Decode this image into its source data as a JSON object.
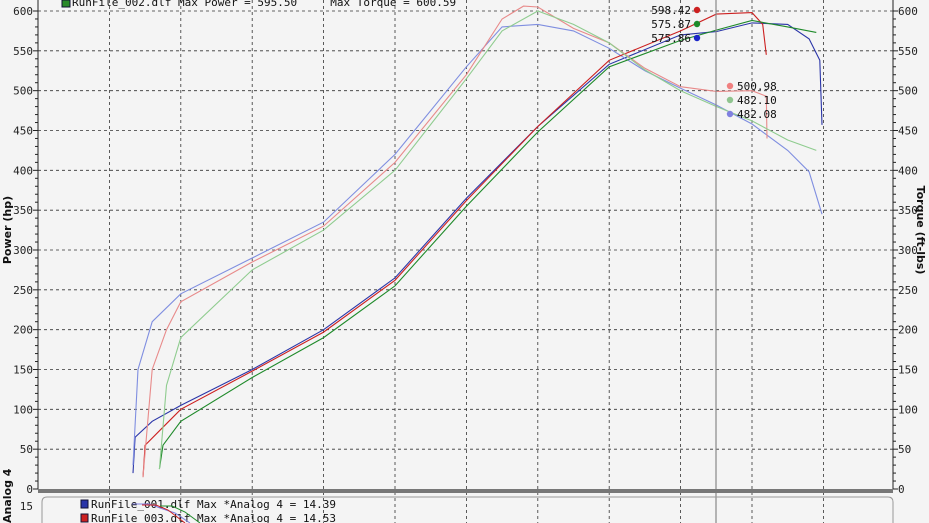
{
  "chart_data": {
    "type": "line",
    "title": "",
    "legend_top": "RunFile_002.dlf Max Power = 595.50     Max Torque = 600.59",
    "ylabel_left": "Power (hp)",
    "ylabel_right": "Torque (ft-lbs)",
    "ylim": [
      0,
      600
    ],
    "yticks": [
      0,
      50,
      100,
      150,
      200,
      250,
      300,
      350,
      400,
      450,
      500,
      550,
      600
    ],
    "grid": true,
    "x_tick_labels_visible": false,
    "cursor_x": 9.5,
    "series": [
      {
        "run": "RunFile_001",
        "kind": "power",
        "color": "#2a35a8",
        "points": [
          [
            1.33,
            20
          ],
          [
            1.36,
            65
          ],
          [
            1.6,
            85
          ],
          [
            2,
            105
          ],
          [
            3,
            150
          ],
          [
            4,
            200
          ],
          [
            5,
            265
          ],
          [
            6,
            365
          ],
          [
            7,
            455
          ],
          [
            8,
            535
          ],
          [
            9,
            570
          ],
          [
            9.5,
            576
          ],
          [
            10,
            585
          ],
          [
            10.5,
            585
          ],
          [
            10.8,
            565
          ],
          [
            10.95,
            540
          ],
          [
            10.98,
            457
          ]
        ]
      },
      {
        "run": "RunFile_001",
        "kind": "torque",
        "color": "#7f8ee0",
        "points": [
          [
            1.33,
            30
          ],
          [
            1.4,
            150
          ],
          [
            1.6,
            210
          ],
          [
            2,
            245
          ],
          [
            3,
            290
          ],
          [
            4,
            335
          ],
          [
            5,
            420
          ],
          [
            6,
            530
          ],
          [
            6.5,
            580
          ],
          [
            7,
            585
          ],
          [
            7.5,
            575
          ],
          [
            8,
            555
          ],
          [
            8.5,
            525
          ],
          [
            9,
            505
          ],
          [
            9.5,
            482
          ],
          [
            10,
            460
          ],
          [
            10.5,
            425
          ],
          [
            10.8,
            400
          ],
          [
            10.98,
            345
          ]
        ]
      },
      {
        "run": "RunFile_003",
        "kind": "power",
        "color": "#cc2020",
        "points": [
          [
            1.47,
            15
          ],
          [
            1.5,
            55
          ],
          [
            1.8,
            82
          ],
          [
            2,
            100
          ],
          [
            3,
            148
          ],
          [
            4,
            197
          ],
          [
            5,
            262
          ],
          [
            6,
            362
          ],
          [
            7,
            455
          ],
          [
            8,
            540
          ],
          [
            9,
            575
          ],
          [
            9.5,
            598
          ],
          [
            10,
            598
          ],
          [
            10.15,
            585
          ],
          [
            10.2,
            545
          ]
        ]
      },
      {
        "run": "RunFile_003",
        "kind": "torque",
        "color": "#e88a8a",
        "points": [
          [
            1.47,
            15
          ],
          [
            1.6,
            150
          ],
          [
            1.8,
            200
          ],
          [
            2,
            235
          ],
          [
            3,
            285
          ],
          [
            4,
            330
          ],
          [
            5,
            410
          ],
          [
            6,
            520
          ],
          [
            6.5,
            590
          ],
          [
            6.8,
            608
          ],
          [
            7,
            605
          ],
          [
            7.5,
            580
          ],
          [
            8,
            560
          ],
          [
            8.5,
            530
          ],
          [
            9,
            505
          ],
          [
            9.5,
            501
          ],
          [
            10,
            500
          ],
          [
            10.2,
            495
          ],
          [
            10.21,
            440
          ]
        ]
      },
      {
        "run": "RunFile_002",
        "kind": "power",
        "color": "#1f8a2a",
        "points": [
          [
            1.7,
            25
          ],
          [
            1.75,
            55
          ],
          [
            2,
            85
          ],
          [
            3,
            140
          ],
          [
            4,
            190
          ],
          [
            5,
            255
          ],
          [
            6,
            355
          ],
          [
            7,
            450
          ],
          [
            8,
            530
          ],
          [
            9,
            565
          ],
          [
            9.5,
            576
          ],
          [
            10,
            590
          ],
          [
            10.5,
            580
          ],
          [
            10.9,
            575
          ]
        ]
      },
      {
        "run": "RunFile_002",
        "kind": "torque",
        "color": "#8fcc8f",
        "points": [
          [
            1.7,
            25
          ],
          [
            1.8,
            130
          ],
          [
            2,
            190
          ],
          [
            3,
            275
          ],
          [
            4,
            325
          ],
          [
            5,
            400
          ],
          [
            6,
            515
          ],
          [
            6.5,
            575
          ],
          [
            7,
            600
          ],
          [
            7.5,
            585
          ],
          [
            8,
            560
          ],
          [
            8.5,
            528
          ],
          [
            9,
            500
          ],
          [
            9.5,
            482
          ],
          [
            10,
            462
          ],
          [
            10.5,
            440
          ],
          [
            10.9,
            425
          ]
        ]
      }
    ],
    "cursor_values": [
      {
        "kind": "power",
        "value": "598.42",
        "color": "#cc2020"
      },
      {
        "kind": "power",
        "value": "575.87",
        "color": "#1f8a2a"
      },
      {
        "kind": "power",
        "value": "575.86",
        "color": "#1a25c8"
      },
      {
        "kind": "torque",
        "value": "500.98",
        "color": "#f08080"
      },
      {
        "kind": "torque",
        "value": "482.10",
        "color": "#8fc48f"
      },
      {
        "kind": "torque",
        "value": "482.08",
        "color": "#8080e0"
      }
    ],
    "sub_panel": {
      "ylabel": "Analog 4",
      "ytop": "15",
      "legend": [
        {
          "text": "RunFile_001.dlf Max *Analog 4 = 14.39",
          "color": "#2a35a8"
        },
        {
          "text": "RunFile_003.dlf Max *Analog 4 = 14.53",
          "color": "#cc2020"
        }
      ]
    }
  }
}
